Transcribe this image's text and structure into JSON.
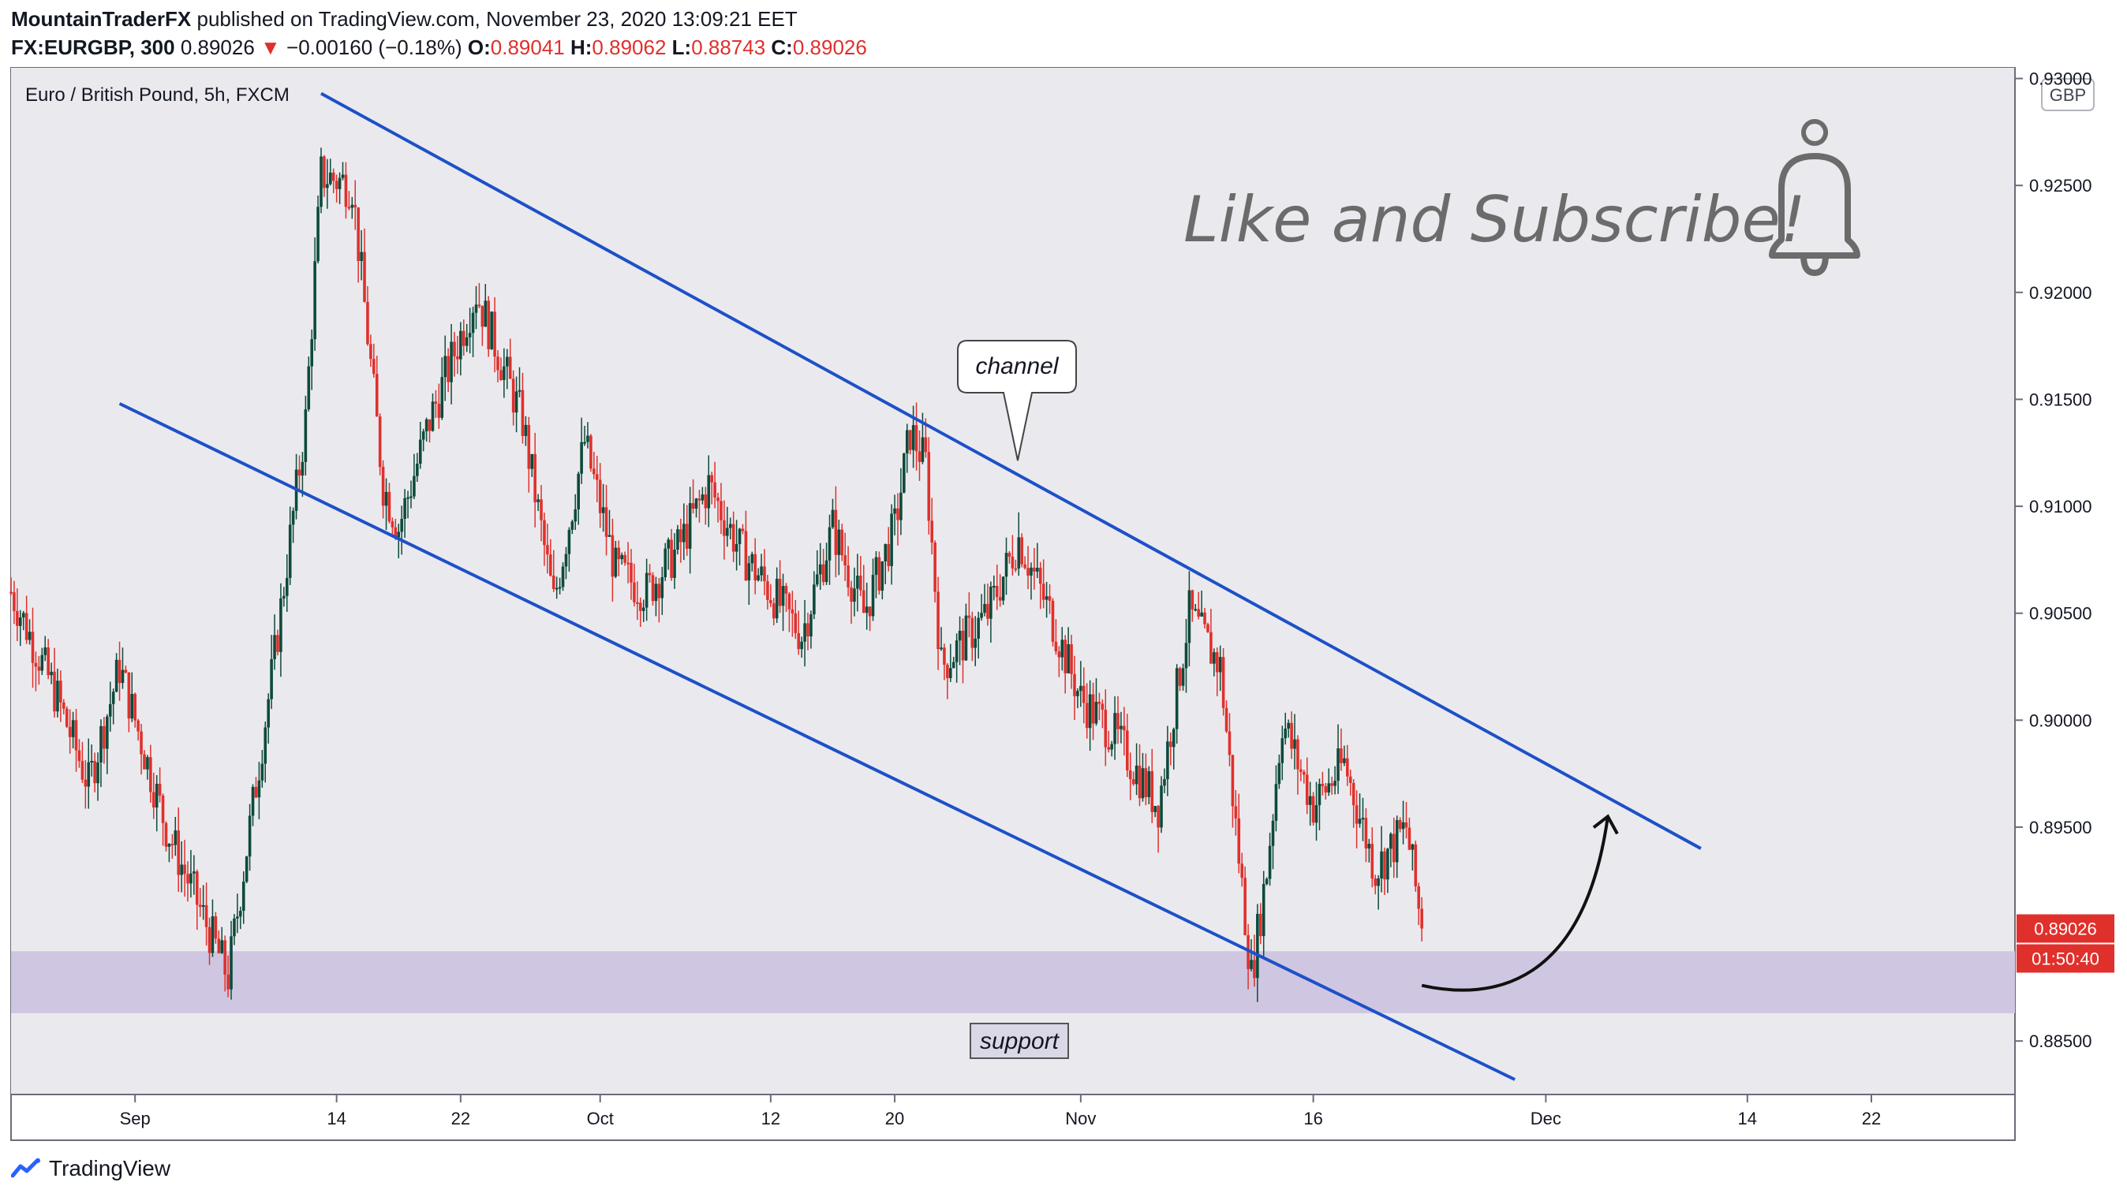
{
  "header": {
    "author": "MountainTraderFX",
    "published_text": "published on TradingView.com, November 23, 2020 13:09:21 EET",
    "symbol": "FX:EURGBP, 300",
    "last": "0.89026",
    "change_arrow": "▼",
    "change": "−0.00160 (−0.18%)",
    "o_label": "O:",
    "o": "0.89041",
    "h_label": "H:",
    "h": "0.89062",
    "l_label": "L:",
    "l": "0.88743",
    "c_label": "C:",
    "c": "0.89026"
  },
  "chart_title": "Euro / British Pound, 5h, FXCM",
  "currency_badge": "GBP",
  "price_tag": "0.89026",
  "countdown_tag": "01:50:40",
  "annotations": {
    "like_subscribe": "Like and Subscribe!",
    "channel": "channel",
    "support": "support"
  },
  "footer": {
    "brand": "TradingView"
  },
  "colors": {
    "background": "#eaeaee",
    "bull": "#0d4a3b",
    "bear": "#e0302c",
    "channel_line": "#1e50c8",
    "support_zone": "#cfc7e2",
    "price_tag": "#e0302c"
  },
  "chart_data": {
    "type": "candlestick",
    "symbol": "EURGBP",
    "timeframe": "5h",
    "ylim": [
      0.8825,
      0.9305
    ],
    "y_ticks": [
      "0.93000",
      "0.92500",
      "0.92000",
      "0.91500",
      "0.91000",
      "0.90500",
      "0.90000",
      "0.89500",
      "0.88500"
    ],
    "x_ticks": [
      "Sep",
      "14",
      "22",
      "Oct",
      "12",
      "20",
      "Nov",
      "16",
      "Dec",
      "14",
      "22"
    ],
    "price_path": [
      {
        "date": "2020-08-24",
        "close": 0.906
      },
      {
        "date": "2020-08-27",
        "close": 0.901
      },
      {
        "date": "2020-08-29",
        "close": 0.897
      },
      {
        "date": "2020-08-31",
        "close": 0.9025
      },
      {
        "date": "2020-09-03",
        "close": 0.895
      },
      {
        "date": "2020-09-07",
        "close": 0.888
      },
      {
        "date": "2020-09-10",
        "close": 0.903
      },
      {
        "date": "2020-09-12",
        "close": 0.914
      },
      {
        "date": "2020-09-13",
        "close": 0.9255
      },
      {
        "date": "2020-09-15",
        "close": 0.925
      },
      {
        "date": "2020-09-17",
        "close": 0.911
      },
      {
        "date": "2020-09-18",
        "close": 0.909
      },
      {
        "date": "2020-09-20",
        "close": 0.914
      },
      {
        "date": "2020-09-23",
        "close": 0.92
      },
      {
        "date": "2020-09-26",
        "close": 0.914
      },
      {
        "date": "2020-09-28",
        "close": 0.9055
      },
      {
        "date": "2020-09-30",
        "close": 0.913
      },
      {
        "date": "2020-10-02",
        "close": 0.907
      },
      {
        "date": "2020-10-04",
        "close": 0.906
      },
      {
        "date": "2020-10-06",
        "close": 0.908
      },
      {
        "date": "2020-10-08",
        "close": 0.911
      },
      {
        "date": "2020-10-10",
        "close": 0.908
      },
      {
        "date": "2020-10-12",
        "close": 0.906
      },
      {
        "date": "2020-10-14",
        "close": 0.904
      },
      {
        "date": "2020-10-16",
        "close": 0.909
      },
      {
        "date": "2020-10-18",
        "close": 0.905
      },
      {
        "date": "2020-10-20",
        "close": 0.909
      },
      {
        "date": "2020-10-21",
        "close": 0.9135
      },
      {
        "date": "2020-10-22",
        "close": 0.912
      },
      {
        "date": "2020-10-23",
        "close": 0.9025
      },
      {
        "date": "2020-10-26",
        "close": 0.905
      },
      {
        "date": "2020-10-28",
        "close": 0.9085
      },
      {
        "date": "2020-10-30",
        "close": 0.905
      },
      {
        "date": "2020-11-01",
        "close": 0.901
      },
      {
        "date": "2020-11-03",
        "close": 0.8995
      },
      {
        "date": "2020-11-06",
        "close": 0.896
      },
      {
        "date": "2020-11-08",
        "close": 0.905
      },
      {
        "date": "2020-11-10",
        "close": 0.9025
      },
      {
        "date": "2020-11-11",
        "close": 0.895
      },
      {
        "date": "2020-11-12",
        "close": 0.888
      },
      {
        "date": "2020-11-13",
        "close": 0.893
      },
      {
        "date": "2020-11-14",
        "close": 0.9
      },
      {
        "date": "2020-11-16",
        "close": 0.896
      },
      {
        "date": "2020-11-18",
        "close": 0.898
      },
      {
        "date": "2020-11-20",
        "close": 0.893
      },
      {
        "date": "2020-11-22",
        "close": 0.895
      },
      {
        "date": "2020-11-23",
        "close": 0.89026
      }
    ],
    "channel": {
      "upper": [
        {
          "date": "2020-09-13",
          "price": 0.9293
        },
        {
          "date": "2020-12-11",
          "price": 0.894
        }
      ],
      "lower": [
        {
          "date": "2020-08-31",
          "price": 0.9148
        },
        {
          "date": "2020-11-29",
          "price": 0.8832
        }
      ]
    },
    "support_zone": [
      0.8863,
      0.8892
    ],
    "projection_arrow": {
      "from": {
        "date": "2020-11-23",
        "price": 0.8876
      },
      "to": {
        "date": "2020-12-05",
        "price": 0.8955
      }
    }
  }
}
